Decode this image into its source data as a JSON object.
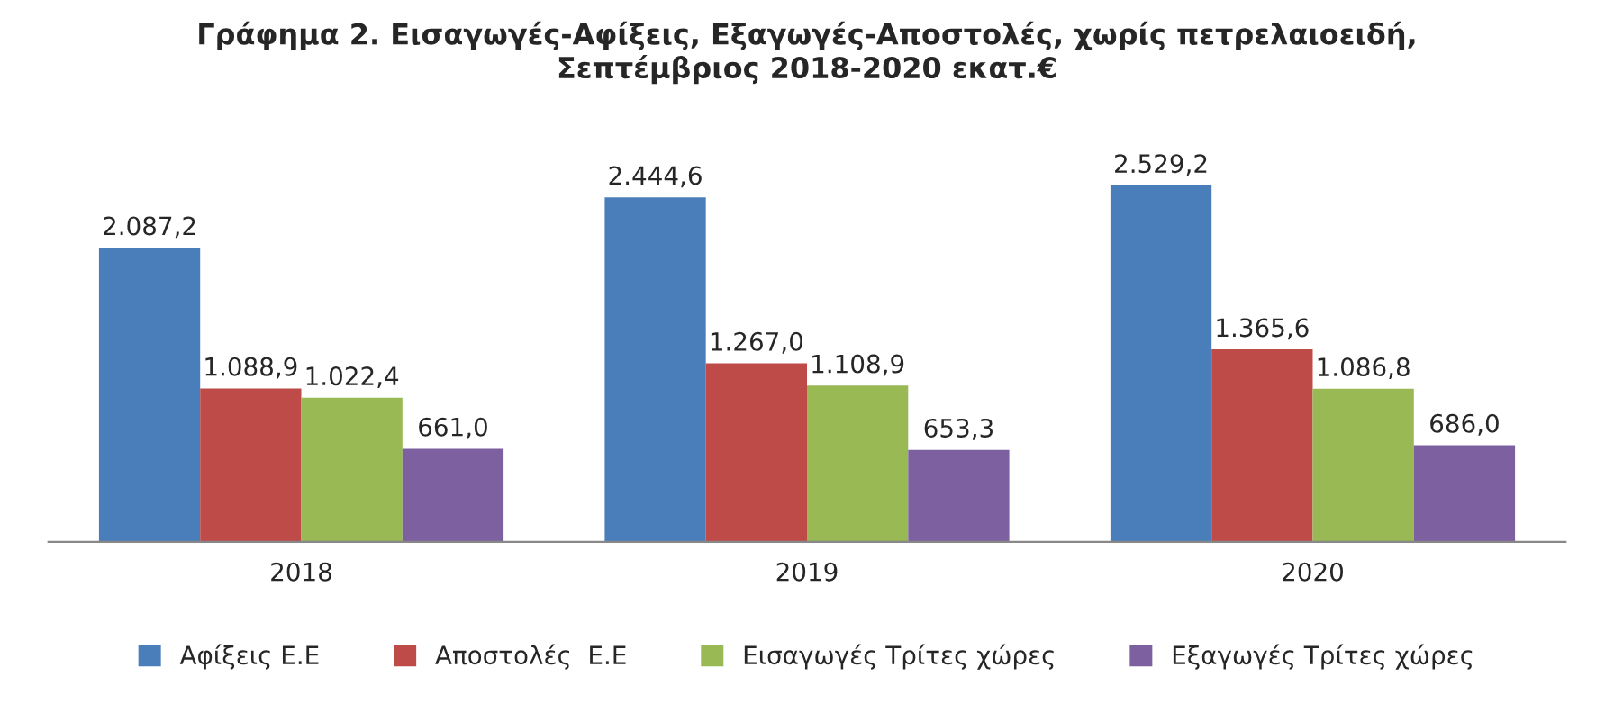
{
  "chart_data": {
    "type": "bar",
    "title": "Γράφημα 2. Εισαγωγές-Αφίξεις, Εξαγωγές-Αποστολές, χωρίς πετρελαιοειδή,\nΣεπτέμβριος 2018-2020 εκατ.€",
    "categories": [
      "2018",
      "2019",
      "2020"
    ],
    "series": [
      {
        "name": "Αφίξεις Ε.Ε",
        "color": "#4a7ebb",
        "values": [
          2087.2,
          2444.6,
          2529.2
        ],
        "value_labels": [
          "2.087,2",
          "2.444,6",
          "2.529,2"
        ]
      },
      {
        "name": "Αποστολές  Ε.Ε",
        "color": "#be4b48",
        "values": [
          1088.9,
          1267.0,
          1365.6
        ],
        "value_labels": [
          "1.088,9",
          "1.267,0",
          "1.365,6"
        ]
      },
      {
        "name": "Εισαγωγές Τρίτες χώρες",
        "color": "#98b954",
        "values": [
          1022.4,
          1108.9,
          1086.8
        ],
        "value_labels": [
          "1.022,4",
          "1.108,9",
          "1.086,8"
        ]
      },
      {
        "name": "Εξαγωγές Τρίτες χώρες",
        "color": "#7d60a0",
        "values": [
          661.0,
          653.3,
          686.0
        ],
        "value_labels": [
          "661,0",
          "653,3",
          "686,0"
        ]
      }
    ],
    "legend": "bottom",
    "grid": false,
    "tick_labels": "x"
  }
}
